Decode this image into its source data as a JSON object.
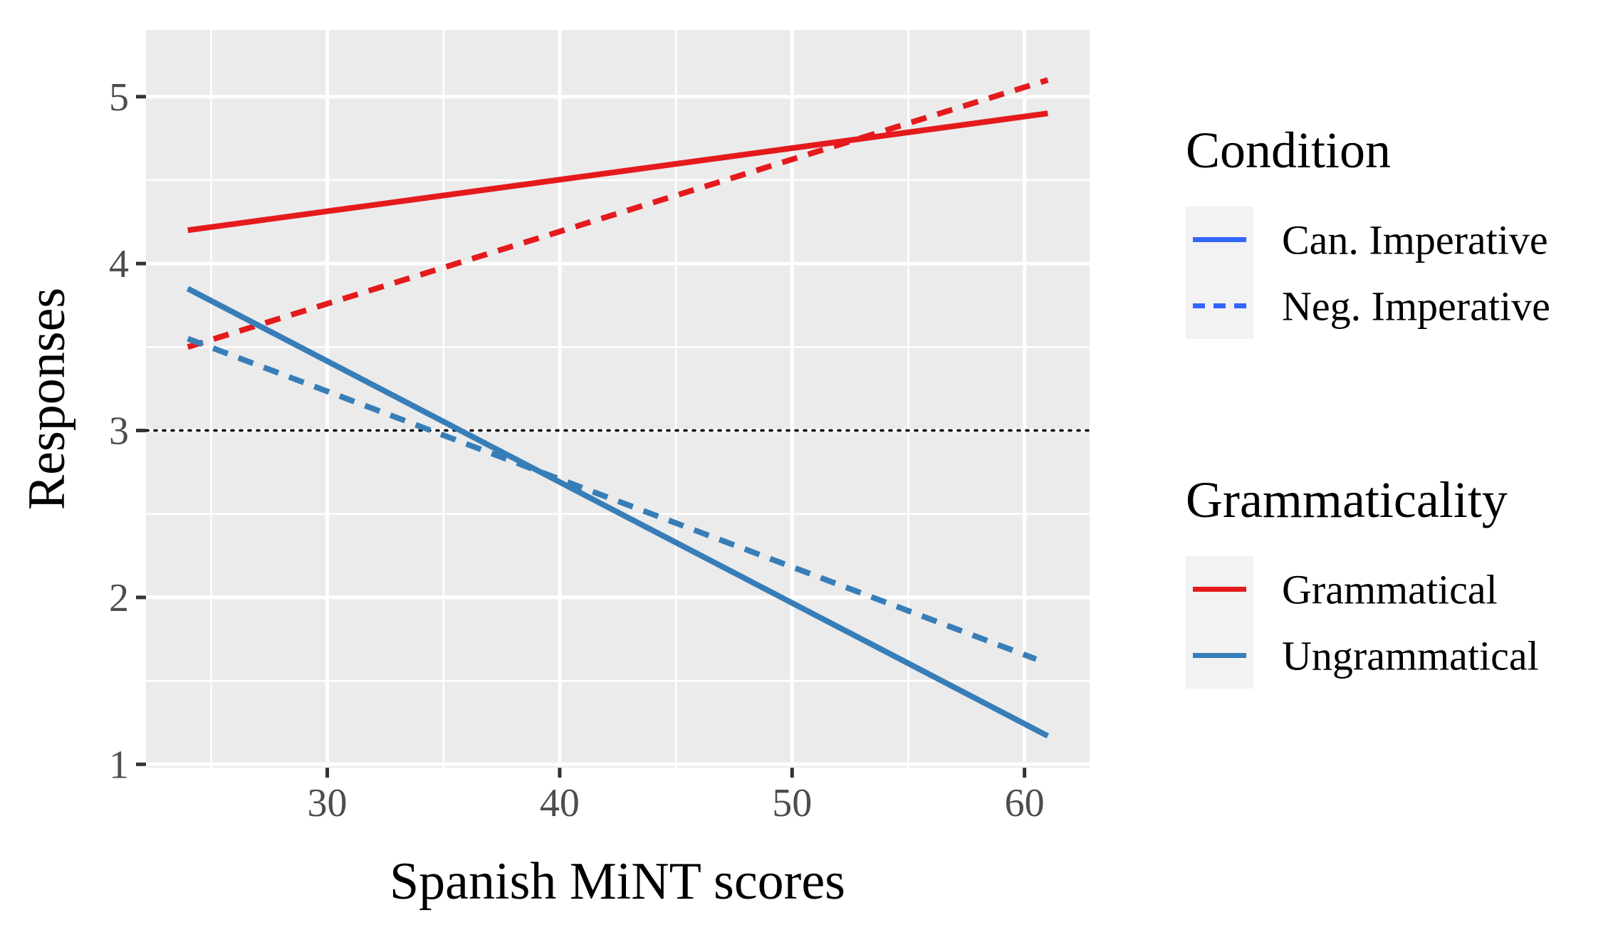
{
  "chart_data": {
    "type": "line",
    "title": "",
    "xlabel": "Spanish MiNT scores",
    "ylabel": "Responses",
    "xlim": [
      22.2,
      62.8
    ],
    "ylim": [
      0.98,
      5.4
    ],
    "x_ticks": [
      30,
      40,
      50,
      60
    ],
    "x_minor": [
      25,
      35,
      45,
      55
    ],
    "y_ticks": [
      1,
      2,
      3,
      4,
      5
    ],
    "y_minor": [
      1.5,
      2.5,
      3.5,
      4.5
    ],
    "reference_line": {
      "y": 3,
      "style": "dotted",
      "color": "#000000"
    },
    "series": [
      {
        "name": "Grammatical Can. Imperative",
        "grammaticality": "Grammatical",
        "condition": "Can. Imperative",
        "color": "#e41a1c",
        "dash": "solid",
        "x": [
          24,
          61
        ],
        "y": [
          4.2,
          4.9
        ]
      },
      {
        "name": "Grammatical Neg. Imperative",
        "grammaticality": "Grammatical",
        "condition": "Neg. Imperative",
        "color": "#e41a1c",
        "dash": "dashed",
        "x": [
          24,
          61
        ],
        "y": [
          3.5,
          5.1
        ]
      },
      {
        "name": "Ungrammatical Can. Imperative",
        "grammaticality": "Ungrammatical",
        "condition": "Can. Imperative",
        "color": "#377eb8",
        "dash": "solid",
        "x": [
          24,
          61
        ],
        "y": [
          3.85,
          1.17
        ]
      },
      {
        "name": "Ungrammatical Neg. Imperative",
        "grammaticality": "Ungrammatical",
        "condition": "Neg. Imperative",
        "color": "#377eb8",
        "dash": "dashed",
        "x": [
          24,
          60.5
        ],
        "y": [
          3.55,
          1.63
        ]
      }
    ],
    "legends": [
      {
        "title": "Condition",
        "items": [
          {
            "label": "Can. Imperative",
            "color": "#3366ff",
            "dash": "solid"
          },
          {
            "label": "Neg. Imperative",
            "color": "#3366ff",
            "dash": "dashed"
          }
        ]
      },
      {
        "title": "Grammaticality",
        "items": [
          {
            "label": "Grammatical",
            "color": "#e41a1c",
            "dash": "solid"
          },
          {
            "label": "Ungrammatical",
            "color": "#377eb8",
            "dash": "solid"
          }
        ]
      }
    ]
  }
}
